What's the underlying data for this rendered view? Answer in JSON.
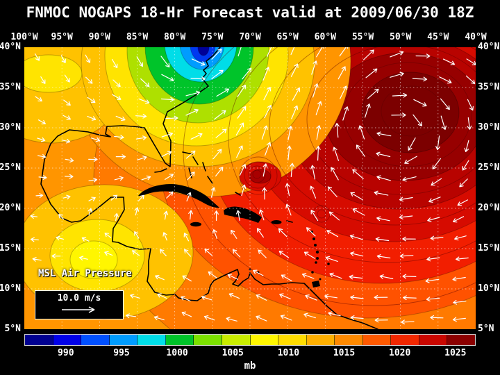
{
  "title": "FNMOC NOGAPS 18-Hr Forecast valid at 2009/06/30 18Z",
  "axes": {
    "lon_labels": [
      "100°W",
      "95°W",
      "90°W",
      "85°W",
      "80°W",
      "75°W",
      "70°W",
      "65°W",
      "60°W",
      "55°W",
      "50°W",
      "45°W",
      "40°W"
    ],
    "lat_labels": [
      "40°N",
      "35°N",
      "30°N",
      "25°N",
      "20°N",
      "15°N",
      "10°N",
      "5°N"
    ]
  },
  "map": {
    "field_label": "MSL Air Pressure",
    "wind_legend": "10.0 m/s"
  },
  "colorbar": {
    "unit": "mb",
    "tick_labels": [
      "990",
      "995",
      "1000",
      "1005",
      "1010",
      "1015",
      "1020",
      "1025"
    ],
    "colors": [
      "#000090",
      "#0000E8",
      "#0050FF",
      "#009CFF",
      "#00DDE8",
      "#00C42A",
      "#7CE000",
      "#C8EC00",
      "#FFF600",
      "#FFDC00",
      "#FFB000",
      "#FF8A00",
      "#FF5A00",
      "#F22800",
      "#C90700",
      "#8B0000"
    ]
  },
  "chart_data": {
    "type": "heatmap",
    "model": "FNMOC NOGAPS",
    "forecast": "18-Hr Forecast",
    "valid": "2009/06/30 18Z",
    "variable": "MSL Air Pressure",
    "unit": "mb",
    "colorbar_ticks": [
      990,
      995,
      1000,
      1005,
      1010,
      1015,
      1020,
      1025
    ],
    "lon_ticks": [
      "100°W",
      "95°W",
      "90°W",
      "85°W",
      "80°W",
      "75°W",
      "70°W",
      "65°W",
      "60°W",
      "55°W",
      "50°W",
      "45°W",
      "40°W"
    ],
    "lat_ticks": [
      "40°N",
      "35°N",
      "30°N",
      "25°N",
      "20°N",
      "15°N",
      "10°N",
      "5°N"
    ],
    "wind_reference": "10.0 m/s",
    "legend_position": "bottom"
  }
}
